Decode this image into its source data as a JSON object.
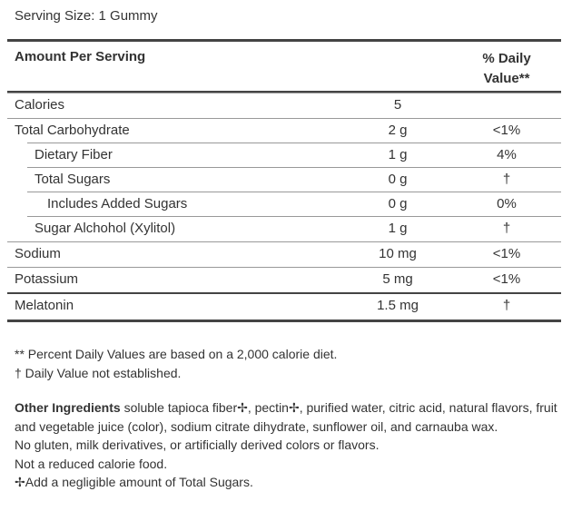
{
  "serving_size": "Serving Size: 1 Gummy",
  "table": {
    "header": {
      "amount": "Amount Per Serving",
      "daily_value": "% Daily Value**"
    },
    "rows": [
      [
        "Calories",
        "5",
        ""
      ],
      [
        "Total Carbohydrate",
        "2 g",
        "<1%"
      ],
      [
        "Dietary Fiber",
        "1 g",
        "4%"
      ],
      [
        "Total Sugars",
        "0 g",
        "†"
      ],
      [
        "Includes Added Sugars",
        "0 g",
        "0%"
      ],
      [
        "Sugar Alchohol (Xylitol)",
        "1 g",
        "†"
      ],
      [
        "Sodium",
        "10 mg",
        "<1%"
      ],
      [
        "Potassium",
        "5 mg",
        "<1%"
      ],
      [
        "Melatonin",
        "1.5 mg",
        "†"
      ]
    ]
  },
  "footnotes": [
    "** Percent Daily Values are based on a 2,000 calorie diet.",
    "† Daily Value not established."
  ],
  "other_ingredients": {
    "label": "Other Ingredients",
    "text": "soluble tapioca fiber✢, pectin✢, purified water, citric acid, natural flavors, fruit and vegetable juice (color), sodium citrate dihydrate, sunflower oil, and carnauba wax."
  },
  "notes": [
    "No gluten, milk derivatives, or artificially derived colors or flavors.",
    "Not a reduced calorie food.",
    "✢Add a negligible amount of Total Sugars."
  ]
}
